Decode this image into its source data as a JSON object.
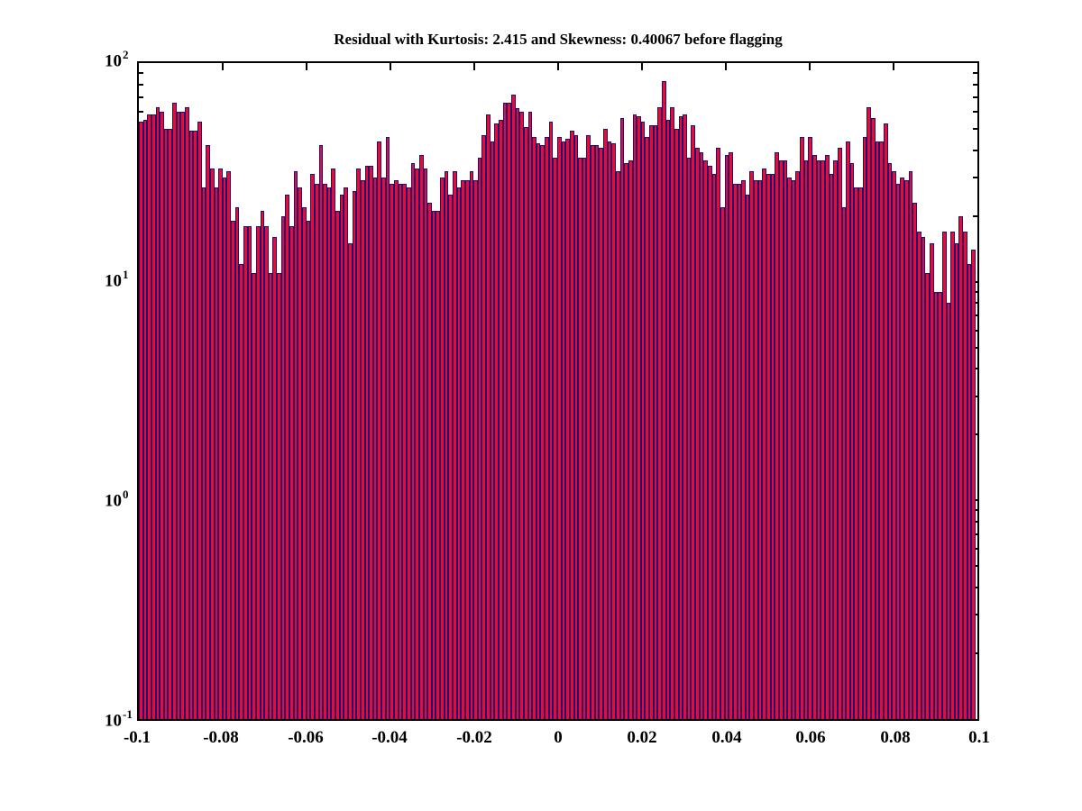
{
  "chart_data": {
    "type": "bar",
    "subtype": "histogram",
    "title": "Residual with Kurtosis: 2.415 and Skewness: 0.40067 before flagging",
    "xlabel": "",
    "ylabel": "",
    "x_scale": "linear",
    "y_scale": "log10",
    "xlim": [
      -0.1,
      0.1
    ],
    "ylim": [
      0.1,
      100
    ],
    "n_bins": 200,
    "x_start": -0.1,
    "bin_width": 0.001,
    "grid": false,
    "legend": "none",
    "x_tick_values": [
      -0.1,
      -0.08,
      -0.06,
      -0.04,
      -0.02,
      0,
      0.02,
      0.04,
      0.06,
      0.08,
      0.1
    ],
    "x_tick_labels": [
      "-0.1",
      "-0.08",
      "-0.06",
      "-0.04",
      "-0.02",
      "0",
      "0.02",
      "0.04",
      "0.06",
      "0.08",
      "0.1"
    ],
    "y_ticks": [
      {
        "base": "10",
        "exp": "2",
        "value": 100
      },
      {
        "base": "10",
        "exp": "1",
        "value": 10
      },
      {
        "base": "10",
        "exp": "0",
        "value": 1
      },
      {
        "base": "10",
        "exp": "-1",
        "value": 0.1
      }
    ],
    "values": [
      54,
      55,
      58,
      58,
      63,
      60,
      50,
      50,
      66,
      60,
      60,
      63,
      49,
      49,
      54,
      27,
      42,
      33,
      27,
      33,
      30,
      32,
      19,
      22,
      12,
      18,
      18,
      11,
      18,
      21,
      18,
      11,
      16,
      11,
      20,
      25,
      18,
      32,
      27,
      22,
      19,
      31,
      28,
      42,
      28,
      27,
      33,
      21,
      25,
      27,
      15,
      26,
      33,
      29,
      34,
      34,
      30,
      44,
      30,
      46,
      28,
      29,
      28,
      28,
      27,
      35,
      33,
      38,
      33,
      23,
      21,
      21,
      30,
      32,
      25,
      32,
      27,
      29,
      29,
      32,
      29,
      37,
      47,
      58,
      44,
      53,
      55,
      66,
      66,
      72,
      62,
      60,
      51,
      60,
      46,
      43,
      42,
      46,
      54,
      37,
      46,
      44,
      45,
      49,
      47,
      37,
      37,
      47,
      42,
      42,
      41,
      50,
      44,
      43,
      32,
      56,
      35,
      36,
      58,
      57,
      54,
      46,
      52,
      52,
      63,
      83,
      55,
      63,
      50,
      57,
      58,
      37,
      52,
      41,
      39,
      36,
      34,
      31,
      41,
      22,
      38,
      39,
      28,
      28,
      29,
      25,
      32,
      29,
      29,
      33,
      31,
      31,
      39,
      36,
      36,
      30,
      29,
      32,
      46,
      36,
      46,
      38,
      36,
      36,
      38,
      31,
      36,
      41,
      22,
      44,
      35,
      27,
      27,
      46,
      63,
      56,
      44,
      44,
      53,
      35,
      32,
      28,
      30,
      29,
      32,
      23,
      17,
      16,
      11,
      15,
      9,
      9,
      17,
      8,
      17,
      15,
      20,
      17,
      12,
      14
    ]
  },
  "colors": {
    "bar_fill": "#f2082c",
    "bar_edge": "#14147d",
    "axis": "#000000",
    "background": "#ffffff",
    "text": "#000000"
  }
}
